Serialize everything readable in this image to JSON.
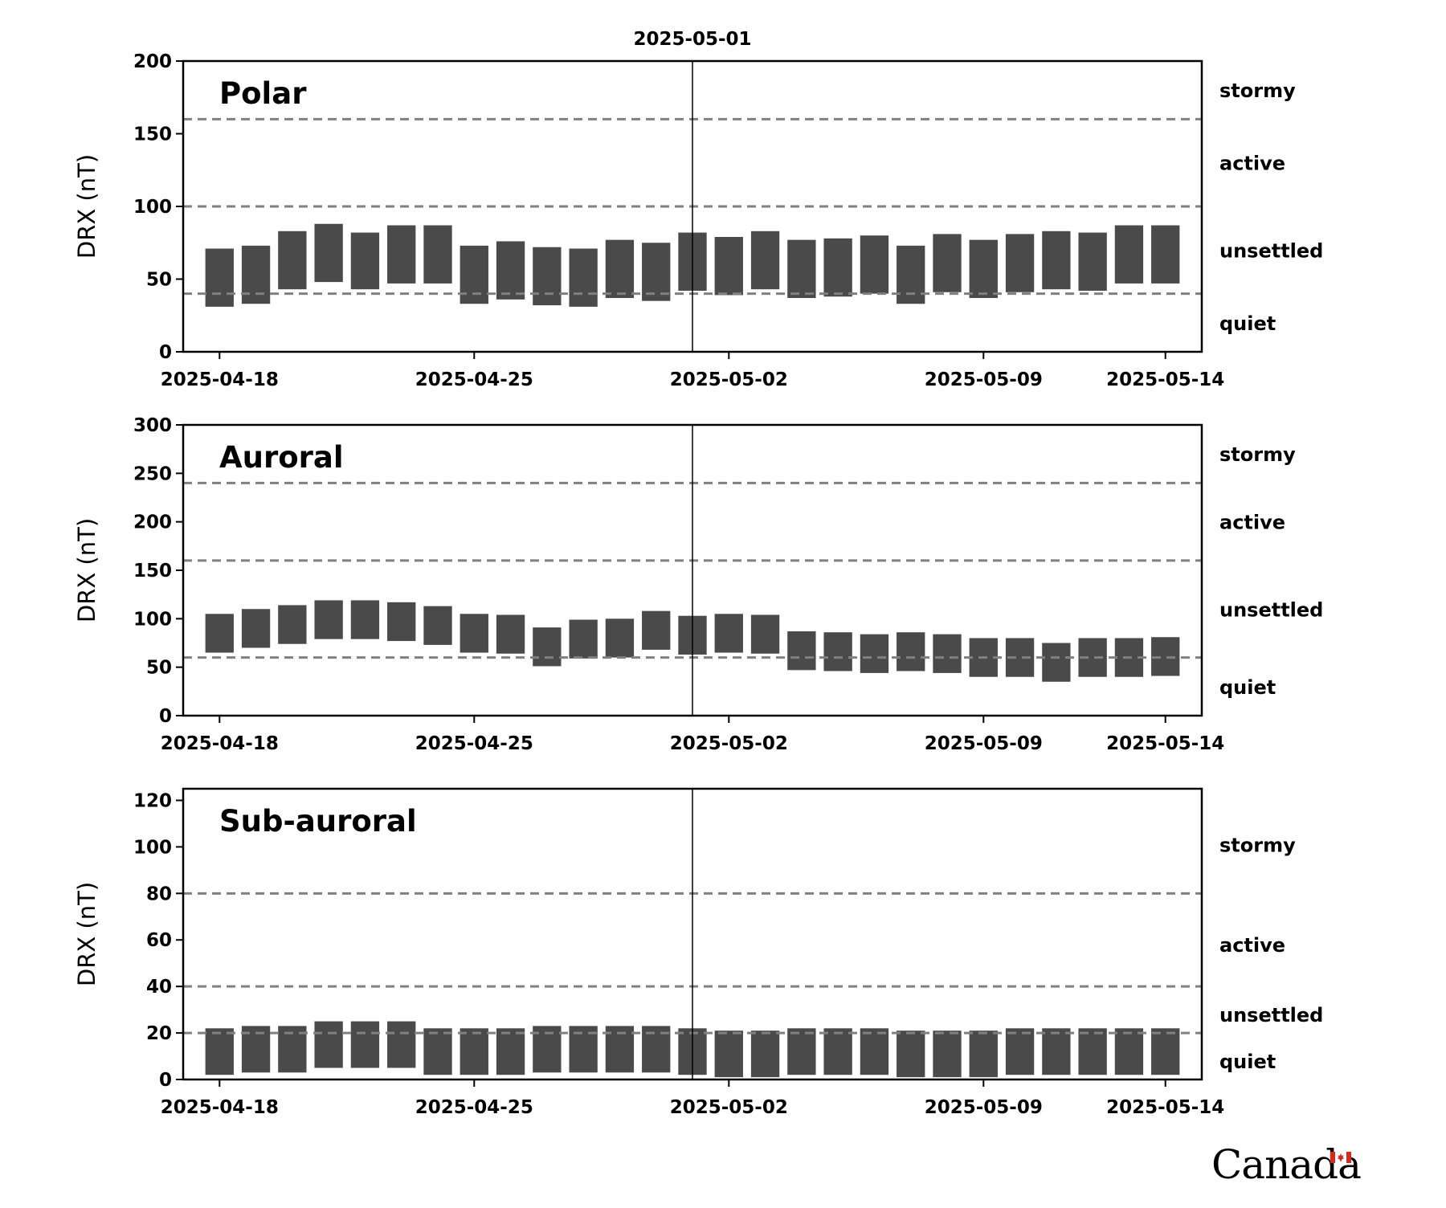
{
  "chart_data": [
    {
      "type": "bar",
      "title": "Polar",
      "ylabel": "DRX (nT)",
      "ylim": [
        0,
        200
      ],
      "yticks": [
        0,
        50,
        100,
        150,
        200
      ],
      "x_tick_labels": [
        "2025-04-18",
        "2025-04-25",
        "2025-05-02",
        "2025-05-09",
        "2025-05-14"
      ],
      "x_start_date": "2025-04-18",
      "x_end_date": "2025-05-14",
      "marker": {
        "date": "2025-05-01",
        "label": "2025-05-01"
      },
      "thresholds": [
        40,
        100,
        160
      ],
      "levels": [
        {
          "label": "stormy",
          "y": 180
        },
        {
          "label": "active",
          "y": 130
        },
        {
          "label": "unsettled",
          "y": 70
        },
        {
          "label": "quiet",
          "y": 20
        }
      ],
      "dates": [
        "2025-04-18",
        "2025-04-19",
        "2025-04-20",
        "2025-04-21",
        "2025-04-22",
        "2025-04-23",
        "2025-04-24",
        "2025-04-25",
        "2025-04-26",
        "2025-04-27",
        "2025-04-28",
        "2025-04-29",
        "2025-04-30",
        "2025-05-01",
        "2025-05-02",
        "2025-05-03",
        "2025-05-04",
        "2025-05-05",
        "2025-05-06",
        "2025-05-07",
        "2025-05-08",
        "2025-05-09",
        "2025-05-10",
        "2025-05-11",
        "2025-05-12",
        "2025-05-13",
        "2025-05-14"
      ],
      "ranges": [
        [
          31,
          71
        ],
        [
          33,
          73
        ],
        [
          43,
          83
        ],
        [
          48,
          88
        ],
        [
          43,
          82
        ],
        [
          47,
          87
        ],
        [
          47,
          87
        ],
        [
          33,
          73
        ],
        [
          36,
          76
        ],
        [
          32,
          72
        ],
        [
          31,
          71
        ],
        [
          37,
          77
        ],
        [
          35,
          75
        ],
        [
          42,
          82
        ],
        [
          39,
          79
        ],
        [
          43,
          83
        ],
        [
          37,
          77
        ],
        [
          38,
          78
        ],
        [
          40,
          80
        ],
        [
          33,
          73
        ],
        [
          41,
          81
        ],
        [
          37,
          77
        ],
        [
          41,
          81
        ],
        [
          43,
          83
        ],
        [
          42,
          82
        ],
        [
          47,
          87
        ],
        [
          47,
          87
        ]
      ],
      "bar_color": "#4a4a4a"
    },
    {
      "type": "bar",
      "title": "Auroral",
      "ylabel": "DRX (nT)",
      "ylim": [
        0,
        300
      ],
      "yticks": [
        0,
        50,
        100,
        150,
        200,
        250,
        300
      ],
      "x_tick_labels": [
        "2025-04-18",
        "2025-04-25",
        "2025-05-02",
        "2025-05-09",
        "2025-05-14"
      ],
      "x_start_date": "2025-04-18",
      "x_end_date": "2025-05-14",
      "marker": {
        "date": "2025-05-01",
        "label": ""
      },
      "thresholds": [
        60,
        160,
        240
      ],
      "levels": [
        {
          "label": "stormy",
          "y": 270
        },
        {
          "label": "active",
          "y": 200
        },
        {
          "label": "unsettled",
          "y": 110
        },
        {
          "label": "quiet",
          "y": 30
        }
      ],
      "dates": [
        "2025-04-18",
        "2025-04-19",
        "2025-04-20",
        "2025-04-21",
        "2025-04-22",
        "2025-04-23",
        "2025-04-24",
        "2025-04-25",
        "2025-04-26",
        "2025-04-27",
        "2025-04-28",
        "2025-04-29",
        "2025-04-30",
        "2025-05-01",
        "2025-05-02",
        "2025-05-03",
        "2025-05-04",
        "2025-05-05",
        "2025-05-06",
        "2025-05-07",
        "2025-05-08",
        "2025-05-09",
        "2025-05-10",
        "2025-05-11",
        "2025-05-12",
        "2025-05-13",
        "2025-05-14"
      ],
      "ranges": [
        [
          65,
          105
        ],
        [
          70,
          110
        ],
        [
          74,
          114
        ],
        [
          79,
          119
        ],
        [
          79,
          119
        ],
        [
          77,
          117
        ],
        [
          73,
          113
        ],
        [
          65,
          105
        ],
        [
          64,
          104
        ],
        [
          51,
          91
        ],
        [
          59,
          99
        ],
        [
          60,
          100
        ],
        [
          68,
          108
        ],
        [
          63,
          103
        ],
        [
          65,
          105
        ],
        [
          64,
          104
        ],
        [
          47,
          87
        ],
        [
          46,
          86
        ],
        [
          44,
          84
        ],
        [
          46,
          86
        ],
        [
          44,
          84
        ],
        [
          40,
          80
        ],
        [
          40,
          80
        ],
        [
          35,
          75
        ],
        [
          40,
          80
        ],
        [
          40,
          80
        ],
        [
          41,
          81
        ]
      ],
      "bar_color": "#4a4a4a"
    },
    {
      "type": "bar",
      "title": "Sub-auroral",
      "ylabel": "DRX (nT)",
      "ylim": [
        0,
        125
      ],
      "yticks": [
        0,
        20,
        40,
        60,
        80,
        100,
        120
      ],
      "x_tick_labels": [
        "2025-04-18",
        "2025-04-25",
        "2025-05-02",
        "2025-05-09",
        "2025-05-14"
      ],
      "x_start_date": "2025-04-18",
      "x_end_date": "2025-05-14",
      "marker": {
        "date": "2025-05-01",
        "label": ""
      },
      "thresholds": [
        20,
        40,
        80
      ],
      "levels": [
        {
          "label": "stormy",
          "y": 101
        },
        {
          "label": "active",
          "y": 58
        },
        {
          "label": "unsettled",
          "y": 28
        },
        {
          "label": "quiet",
          "y": 8
        }
      ],
      "dates": [
        "2025-04-18",
        "2025-04-19",
        "2025-04-20",
        "2025-04-21",
        "2025-04-22",
        "2025-04-23",
        "2025-04-24",
        "2025-04-25",
        "2025-04-26",
        "2025-04-27",
        "2025-04-28",
        "2025-04-29",
        "2025-04-30",
        "2025-05-01",
        "2025-05-02",
        "2025-05-03",
        "2025-05-04",
        "2025-05-05",
        "2025-05-06",
        "2025-05-07",
        "2025-05-08",
        "2025-05-09",
        "2025-05-10",
        "2025-05-11",
        "2025-05-12",
        "2025-05-13",
        "2025-05-14"
      ],
      "ranges": [
        [
          2,
          22
        ],
        [
          3,
          23
        ],
        [
          3,
          23
        ],
        [
          5,
          25
        ],
        [
          5,
          25
        ],
        [
          5,
          25
        ],
        [
          2,
          22
        ],
        [
          2,
          22
        ],
        [
          2,
          22
        ],
        [
          3,
          23
        ],
        [
          3,
          23
        ],
        [
          3,
          23
        ],
        [
          3,
          23
        ],
        [
          2,
          22
        ],
        [
          1,
          21
        ],
        [
          1,
          21
        ],
        [
          2,
          22
        ],
        [
          2,
          22
        ],
        [
          2,
          22
        ],
        [
          1,
          21
        ],
        [
          1,
          21
        ],
        [
          1,
          21
        ],
        [
          2,
          22
        ],
        [
          2,
          22
        ],
        [
          2,
          22
        ],
        [
          2,
          22
        ],
        [
          2,
          22
        ]
      ],
      "bar_color": "#4a4a4a"
    }
  ],
  "colors": {
    "bar": "#4a4a4a",
    "threshold_line": "#808080",
    "axis": "#000000",
    "flag_red": "#d52b1e"
  },
  "logo": {
    "wordmark": "Canada"
  }
}
